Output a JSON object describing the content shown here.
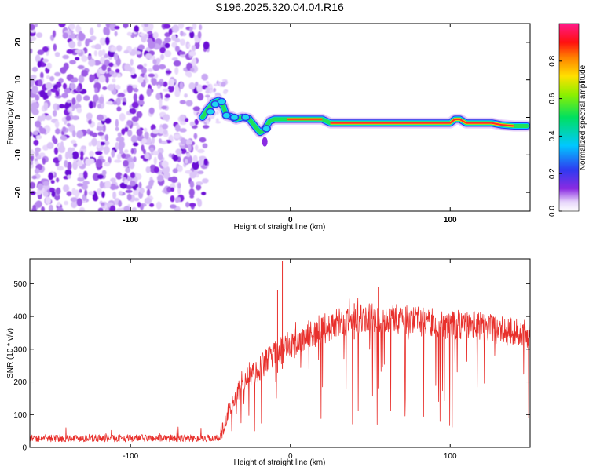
{
  "title": "S196.2025.320.04.04.R16",
  "colors": {
    "noise": "#8a2be2",
    "snr_line": "#e8302c",
    "frame": "#000000"
  },
  "chart_data": [
    {
      "type": "heatmap",
      "name": "spectrogram",
      "xlabel": "Height of straight line (km)",
      "ylabel": "Frequency (Hz)",
      "xlim": [
        -163,
        150
      ],
      "ylim": [
        -25,
        25
      ],
      "xticks": [
        -100,
        0,
        100
      ],
      "yticks": [
        20,
        10,
        0,
        -10,
        -20
      ],
      "noise_region_x": [
        -163,
        -52
      ],
      "ridge": {
        "x": [
          -55,
          -52,
          -48,
          -45,
          -42,
          -40,
          -37,
          -34,
          -30,
          -26,
          -22,
          -19,
          -17,
          -15,
          -13,
          -10,
          -6,
          -2,
          2,
          8,
          15,
          20,
          25,
          35,
          45,
          55,
          62,
          68,
          72,
          78,
          84,
          90,
          96,
          100,
          103,
          106,
          110,
          118,
          126,
          132,
          140,
          148
        ],
        "y": [
          0,
          2,
          4,
          4.5,
          3,
          0.5,
          0.2,
          -0.5,
          0,
          -0.3,
          -2.5,
          -4,
          -3.5,
          -2.5,
          -1,
          -0.5,
          -0.5,
          -0.5,
          -0.5,
          -0.5,
          -0.5,
          -0.5,
          -1.5,
          -1.5,
          -1.5,
          -1.5,
          -1.5,
          -1.5,
          -1.5,
          -1.5,
          -1.5,
          -1.5,
          -1.5,
          -1.5,
          -0.5,
          -0.5,
          -1.5,
          -1.5,
          -1.5,
          -2,
          -2.3,
          -2.3
        ]
      }
    },
    {
      "type": "colorbar",
      "label": "Normalized spectral amplitude",
      "ticks": [
        "0.0",
        "0.2",
        "0.4",
        "0.6",
        "0.8"
      ],
      "range": [
        0,
        1
      ]
    },
    {
      "type": "line",
      "name": "snr",
      "xlabel": "Height of straight line (km)",
      "ylabel": "SNR (10 * v/v)",
      "xlim": [
        -163,
        150
      ],
      "ylim": [
        0,
        575
      ],
      "xticks": [
        -100,
        0,
        100
      ],
      "yticks": [
        0,
        100,
        200,
        300,
        400,
        500
      ],
      "envelope_x": [
        -163,
        -45,
        -40,
        -35,
        -30,
        -25,
        -20,
        -15,
        -10,
        -5,
        0,
        10,
        20,
        30,
        40,
        50,
        60,
        70,
        80,
        90,
        100,
        110,
        120,
        130,
        140,
        150
      ],
      "envelope_y": [
        25,
        25,
        90,
        150,
        190,
        220,
        240,
        260,
        280,
        300,
        310,
        340,
        360,
        380,
        390,
        395,
        395,
        390,
        385,
        380,
        375,
        375,
        370,
        360,
        350,
        345
      ],
      "spikes": [
        {
          "x": -5,
          "y": 570
        },
        {
          "x": -8,
          "y": 480
        },
        {
          "x": 40,
          "y": 440
        },
        {
          "x": 55,
          "y": 490
        }
      ]
    }
  ]
}
